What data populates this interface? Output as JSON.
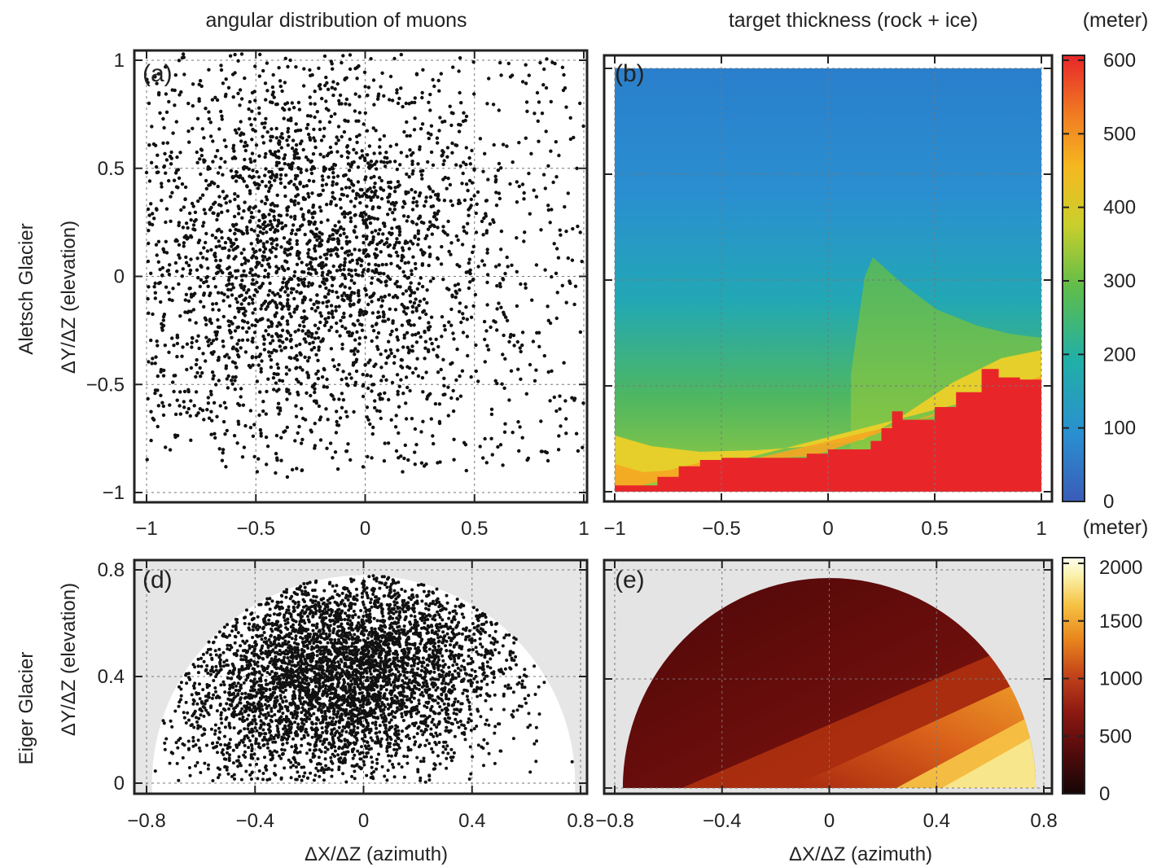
{
  "headers": {
    "left": "angular distribution of muons",
    "right": "target thickness (rock + ice)"
  },
  "row_labels": {
    "top": "Aletsch Glacier",
    "bottom": "Eiger Glacier"
  },
  "axis_labels": {
    "y": "ΔY/ΔZ (elevation)",
    "x": "ΔX/ΔZ (azimuth)"
  },
  "colorbar_units": {
    "top": "(meter)",
    "middle": "(meter)"
  },
  "chart_data": [
    {
      "panel": "(a)",
      "type": "scatter",
      "xlim": [
        -1,
        1
      ],
      "ylim": [
        -1,
        1
      ],
      "xticks": [
        "−1",
        "−0.5",
        "0",
        "0.5",
        "1"
      ],
      "yticks": [
        "−1",
        "−0.5",
        "0",
        "0.5",
        "1"
      ],
      "grid": true,
      "description_points": {
        "n": 3200,
        "center_x": -0.3,
        "center_y": 0.1,
        "spread_x": 0.45,
        "spread_y": 0.42,
        "uniform_fraction": 0.22,
        "ymin_cut": -0.93
      }
    },
    {
      "panel": "(b)",
      "type": "heatmap",
      "xlim": [
        -1,
        1
      ],
      "ylim": [
        -1,
        1
      ],
      "xticks": [
        "−1",
        "−0.5",
        "0",
        "0.5",
        "1"
      ],
      "grid": true,
      "colorbar": {
        "range": [
          0,
          600
        ],
        "ticks": [
          "0",
          "100",
          "200",
          "300",
          "400",
          "500",
          "600"
        ],
        "colors": [
          "#3a5bb8",
          "#2a8fd0",
          "#21b0a6",
          "#5fbd4a",
          "#c9cf2c",
          "#f6b820",
          "#f07a22",
          "#e8262a"
        ]
      },
      "thickness_boundary_red": [
        [
          -1.0,
          -0.97
        ],
        [
          -0.9,
          -0.97
        ],
        [
          -0.8,
          -0.93
        ],
        [
          -0.7,
          -0.88
        ],
        [
          -0.6,
          -0.85
        ],
        [
          -0.5,
          -0.84
        ],
        [
          -0.3,
          -0.84
        ],
        [
          -0.1,
          -0.82
        ],
        [
          0.0,
          -0.8
        ],
        [
          0.2,
          -0.76
        ],
        [
          0.25,
          -0.7
        ],
        [
          0.3,
          -0.62
        ],
        [
          0.35,
          -0.66
        ],
        [
          0.5,
          -0.6
        ],
        [
          0.6,
          -0.53
        ],
        [
          0.72,
          -0.42
        ],
        [
          0.8,
          -0.46
        ],
        [
          0.9,
          -0.47
        ],
        [
          1.0,
          -0.47
        ]
      ]
    },
    {
      "panel": "(d)",
      "type": "scatter",
      "xlim": [
        -0.8,
        0.8
      ],
      "ylim": [
        0,
        0.8
      ],
      "xticks": [
        "−0.8",
        "−0.4",
        "0",
        "0.4",
        "0.8"
      ],
      "yticks": [
        "0",
        "0.4",
        "0.8"
      ],
      "grid": true,
      "description_points": {
        "n": 5200,
        "center_x": -0.08,
        "center_y": 0.42,
        "spread_x": 0.3,
        "spread_y": 0.2,
        "cutoff_radius": 0.78
      }
    },
    {
      "panel": "(e)",
      "type": "heatmap",
      "xlim": [
        -0.8,
        0.8
      ],
      "ylim": [
        0,
        0.8
      ],
      "xticks": [
        "−0.8",
        "−0.4",
        "0",
        "0.4",
        "0.8"
      ],
      "grid": true,
      "colorbar": {
        "range": [
          0,
          2000
        ],
        "ticks": [
          "0",
          "500",
          "1000",
          "1500",
          "2000"
        ],
        "colors": [
          "#160606",
          "#5b0c0c",
          "#8e1a12",
          "#c2421a",
          "#e8841c",
          "#f5c244",
          "#faf0a8",
          "#ffffee"
        ]
      },
      "domain_radius": 0.77
    }
  ]
}
